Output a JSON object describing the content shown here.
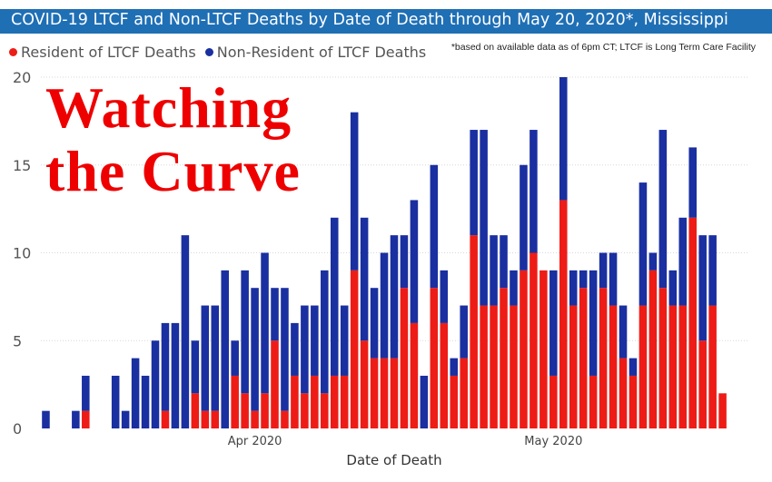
{
  "header": {
    "title": "COVID-19 LTCF and Non-LTCF Deaths by Date of Death through May 20, 2020*, Mississippi",
    "footnote": "*based on available data as of 6pm CT; LTCF is Long Term Care Facility"
  },
  "overlay": {
    "line1": "Watching",
    "line2": "the Curve"
  },
  "colors": {
    "title_bar": "#1f6fb5",
    "ltcf": "#ee1c16",
    "non_ltcf": "#1a2fa0",
    "overlay_text": "#ee0000"
  },
  "chart_data": {
    "type": "bar",
    "stacked": true,
    "x_start": "2020-03-11",
    "x_end": "2020-05-20",
    "xlabel": "Date of Death",
    "ylabel": "",
    "ylim": [
      0,
      20
    ],
    "yticks": [
      0,
      5,
      10,
      15,
      20
    ],
    "xticks": [
      {
        "date": "2020-04-01",
        "label": "Apr 2020"
      },
      {
        "date": "2020-05-01",
        "label": "May 2020"
      }
    ],
    "grid": "horizontal dotted",
    "legend_position": "top-left",
    "series": [
      {
        "name": "Resident of LTCF Deaths",
        "color": "#ee1c16",
        "values": [
          0,
          0,
          0,
          0,
          1,
          0,
          0,
          0,
          0,
          0,
          0,
          0,
          1,
          0,
          0,
          2,
          1,
          1,
          0,
          3,
          2,
          1,
          2,
          5,
          1,
          3,
          2,
          3,
          2,
          3,
          3,
          9,
          5,
          4,
          4,
          4,
          8,
          6,
          0,
          8,
          6,
          3,
          4,
          11,
          7,
          7,
          8,
          7,
          9,
          10,
          9,
          3,
          13,
          7,
          8,
          3,
          8,
          7,
          4,
          3,
          7,
          9,
          8,
          7,
          7,
          12,
          5,
          7,
          2
        ]
      },
      {
        "name": "Non-Resident of LTCF Deaths",
        "color": "#1a2fa0",
        "values": [
          1,
          0,
          0,
          1,
          2,
          0,
          0,
          3,
          1,
          4,
          3,
          5,
          5,
          6,
          11,
          3,
          6,
          6,
          9,
          2,
          7,
          7,
          8,
          3,
          7,
          3,
          5,
          4,
          7,
          9,
          4,
          9,
          7,
          4,
          6,
          7,
          3,
          7,
          3,
          7,
          3,
          1,
          3,
          6,
          10,
          4,
          3,
          2,
          6,
          7,
          0,
          6,
          7,
          2,
          1,
          6,
          2,
          3,
          3,
          1,
          7,
          1,
          9,
          2,
          5,
          4,
          6,
          4,
          0
        ]
      }
    ]
  }
}
